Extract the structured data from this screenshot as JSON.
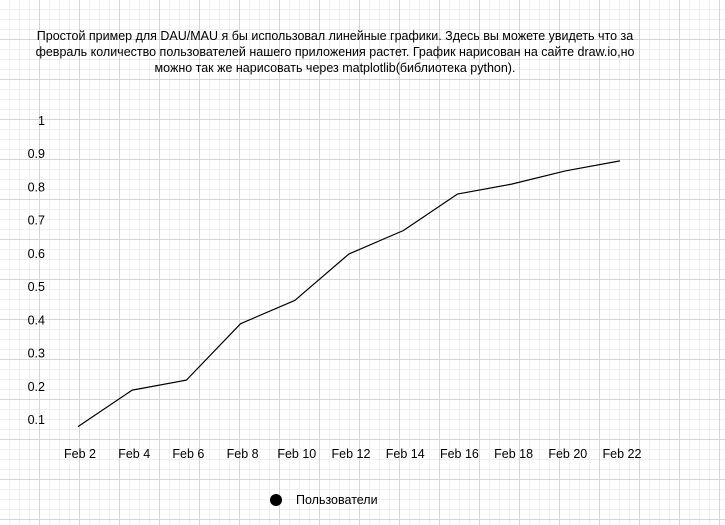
{
  "caption": "Простой пример для DAU/MAU я бы использовал линейные графики. Здесь вы можете увидеть что за февраль количество пользователей нашего приложения растет. График нарисован на сайте draw.io,но можно так же нарисовать через matplotlib(библиотека python).",
  "chart_data": {
    "type": "line",
    "categories": [
      "Feb 2",
      "Feb 4",
      "Feb 6",
      "Feb 8",
      "Feb 10",
      "Feb 12",
      "Feb 14",
      "Feb 16",
      "Feb 18",
      "Feb 20",
      "Feb 22"
    ],
    "y_ticks": [
      "0.1",
      "0.2",
      "0.3",
      "0.4",
      "0.5",
      "0.6",
      "0.7",
      "0.8",
      "0.9",
      "1"
    ],
    "ylim": [
      0.1,
      1.0
    ],
    "series": [
      {
        "name": "Пользователи",
        "values": [
          0.08,
          0.19,
          0.22,
          0.39,
          0.46,
          0.6,
          0.67,
          0.78,
          0.81,
          0.85,
          0.88
        ],
        "color": "#000000"
      }
    ],
    "legend_position": "bottom",
    "grid": true
  }
}
